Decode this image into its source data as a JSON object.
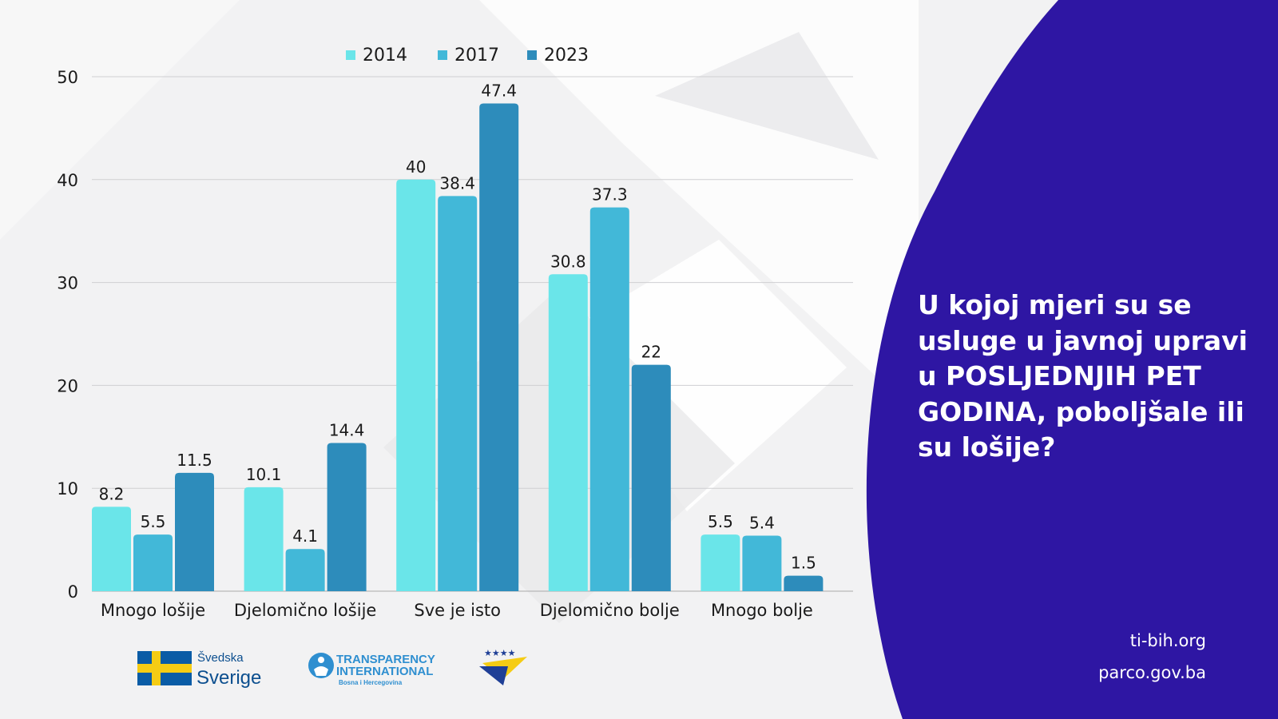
{
  "question": "U kojoj mjeri su se usluge u javnoj upravi u POSLJEDNJIH PET GODINA, poboljšale ili su lošije?",
  "question_lines": [
    "U kojoj mjeri su se",
    "usluge u javnoj upravi",
    "u POSLJEDNJIH PET",
    "GODINA, poboljšale ili",
    "su lošije?"
  ],
  "links": {
    "site1": "ti-bih.org",
    "site2": "parco.gov.ba"
  },
  "logos": {
    "sweden_line1": "Švedska",
    "sweden_line2": "Sverige",
    "ti_line1": "TRANSPARENCY",
    "ti_line2": "INTERNATIONAL",
    "ti_line3": "Bosna i Hercegovina"
  },
  "colors": {
    "panel": "#2e16a3",
    "c2014": "#6ae5e9",
    "c2017": "#42b8d8",
    "c2023": "#2d8cbb"
  },
  "chart_data": {
    "type": "bar",
    "categories": [
      "Mnogo lošije",
      "Djelomično lošije",
      "Sve je isto",
      "Djelomično bolje",
      "Mnogo bolje"
    ],
    "series": [
      {
        "name": "2014",
        "values": [
          8.2,
          10.1,
          40,
          30.8,
          5.5
        ]
      },
      {
        "name": "2017",
        "values": [
          5.5,
          4.1,
          38.4,
          37.3,
          5.4
        ]
      },
      {
        "name": "2023",
        "values": [
          11.5,
          14.4,
          47.4,
          22,
          1.5
        ]
      }
    ],
    "ylim": [
      0,
      50
    ],
    "yticks": [
      0,
      10,
      20,
      30,
      40,
      50
    ],
    "grid": true,
    "legend": "top",
    "data_labels": true
  }
}
